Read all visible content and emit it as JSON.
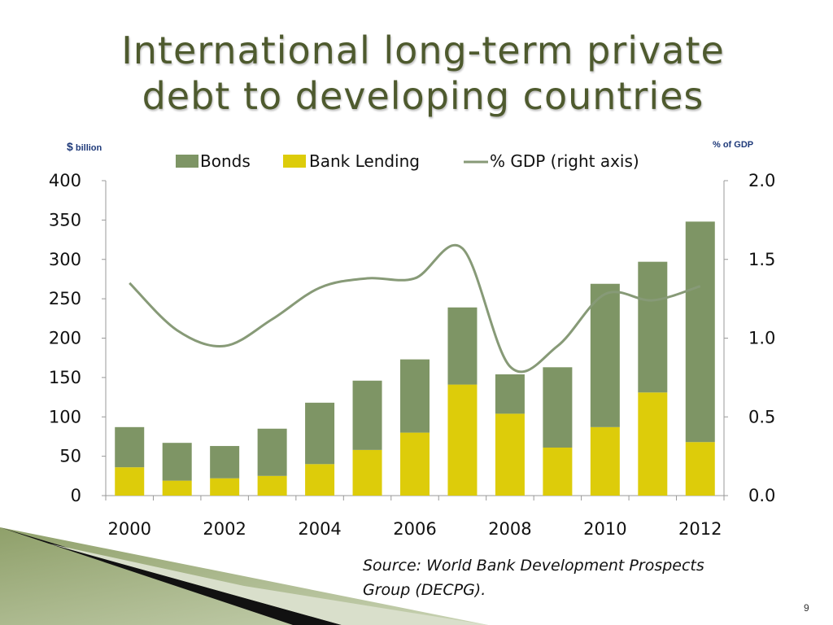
{
  "slide": {
    "title_line1": "International long-term private",
    "title_line2": "debt to developing countries",
    "left_unit_symbol": "$",
    "left_unit_text": "billion",
    "right_unit_text": "% of GDP",
    "source": "Source: World Bank Development Prospects Group (DECPG).",
    "page_number": "9"
  },
  "colors": {
    "title": "#4e5a2e",
    "bonds": "#7e9565",
    "bank_lending": "#ddcc0a",
    "gdp_line": "#879a77",
    "unit_labels": "#1f3a7a"
  },
  "chart_data": {
    "type": "bar",
    "stacked": true,
    "x": [
      2000,
      2001,
      2002,
      2003,
      2004,
      2005,
      2006,
      2007,
      2008,
      2009,
      2010,
      2011,
      2012
    ],
    "x_tick_labels": [
      "2000",
      "2002",
      "2004",
      "2006",
      "2008",
      "2010",
      "2012"
    ],
    "series": [
      {
        "name": "Bonds",
        "type": "bar",
        "axis": "left",
        "values": [
          51,
          48,
          41,
          60,
          78,
          88,
          93,
          98,
          50,
          102,
          182,
          166,
          280
        ]
      },
      {
        "name": "Bank Lending",
        "type": "bar",
        "axis": "left",
        "values": [
          36,
          19,
          22,
          25,
          40,
          58,
          80,
          141,
          104,
          61,
          87,
          131,
          68
        ]
      },
      {
        "name": "% GDP (right axis)",
        "type": "line",
        "axis": "right",
        "values": [
          1.35,
          1.05,
          0.95,
          1.12,
          1.32,
          1.38,
          1.38,
          1.57,
          0.82,
          0.95,
          1.28,
          1.24,
          1.33
        ]
      }
    ],
    "ylim_left": [
      0,
      400
    ],
    "yticks_left": [
      "0",
      "50",
      "100",
      "150",
      "200",
      "250",
      "300",
      "350",
      "400"
    ],
    "ylim_right": [
      0,
      2.0
    ],
    "yticks_right": [
      "0.0",
      "0.5",
      "1.0",
      "1.5",
      "2.0"
    ],
    "legend_position": "top-center",
    "grid": false
  }
}
